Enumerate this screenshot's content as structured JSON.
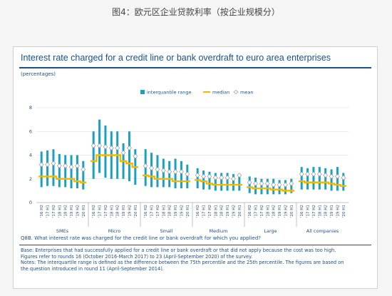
{
  "page_caption": "图4：欧元区企业贷款利率（按企业规模分）",
  "figure": {
    "title": "Interest rate charged for a credit line or bank overdraft to euro area enterprises",
    "units": "(percentages)",
    "question": "Q8B. What interest rate was charged for the credit line or bank overdraft for which you applied?",
    "notes": [
      "Base: Enterprises that had successfully applied for a credit line or bank overdraft or that did not apply because the cost was too high.",
      "Figures refer to rounds 16 (October 2016-March 2017) to 23 (April-September 2020) of the survey.",
      "Notes: The interquartile range is defined as the difference between the 75th percentile and the 25th percentile. The figures are based on",
      "the question introduced in round 11 (April-September 2014)."
    ]
  },
  "colors": {
    "iqr": "#1aa0c2",
    "median": "#f5b800",
    "mean_fill": "#ffffff",
    "mean_stroke": "#9a9a9a",
    "text": "#1a4f8a",
    "grid": "#d9d9d9"
  },
  "chart_data": {
    "type": "bar",
    "legend": {
      "placement": "top-center",
      "entries": [
        "interquantile range",
        "median",
        "mean"
      ]
    },
    "y_ticks": [
      "0",
      "2",
      "4",
      "6",
      "8"
    ],
    "ylim": [
      0,
      8
    ],
    "grid": true,
    "period_labels": [
      "'16 H2",
      "'17 H1",
      "'17 H2",
      "'18 H1",
      "'18 H2",
      "'19 H1",
      "'19 H2",
      "'20 H1"
    ],
    "groups": [
      {
        "name": "SMEs",
        "iqr_low": [
          1.3,
          1.4,
          1.4,
          1.3,
          1.3,
          1.2,
          1.2,
          1.1
        ],
        "iqr_high": [
          4.3,
          4.4,
          4.5,
          4.1,
          4.0,
          4.0,
          4.0,
          3.5
        ],
        "median": [
          2.2,
          2.2,
          2.2,
          2.0,
          2.0,
          2.0,
          1.8,
          1.7
        ],
        "mean": [
          3.2,
          3.2,
          3.3,
          3.1,
          3.1,
          3.0,
          3.1,
          2.8
        ]
      },
      {
        "name": "Micro",
        "iqr_low": [
          2.0,
          2.5,
          2.1,
          2.0,
          2.0,
          2.0,
          1.8,
          1.5
        ],
        "iqr_high": [
          6.0,
          7.0,
          6.5,
          6.0,
          6.0,
          5.0,
          6.0,
          4.5
        ],
        "median": [
          3.5,
          4.0,
          4.0,
          4.0,
          4.0,
          3.5,
          3.3,
          3.0
        ],
        "mean": [
          4.8,
          4.8,
          4.7,
          4.6,
          4.6,
          4.2,
          4.6,
          3.9
        ]
      },
      {
        "name": "Small",
        "iqr_low": [
          1.4,
          1.3,
          1.3,
          1.3,
          1.3,
          1.2,
          1.2,
          1.2
        ],
        "iqr_high": [
          4.5,
          4.2,
          4.0,
          3.7,
          3.5,
          3.7,
          3.5,
          3.2
        ],
        "median": [
          2.3,
          2.2,
          2.0,
          2.0,
          2.0,
          1.8,
          1.8,
          1.8
        ],
        "mean": [
          3.1,
          2.9,
          2.8,
          2.7,
          2.6,
          2.6,
          2.6,
          2.4
        ]
      },
      {
        "name": "Medium",
        "iqr_low": [
          1.2,
          1.1,
          1.1,
          1.0,
          1.0,
          1.0,
          1.0,
          1.0
        ],
        "iqr_high": [
          2.9,
          2.7,
          2.6,
          2.5,
          2.5,
          2.5,
          2.4,
          2.4
        ],
        "median": [
          1.9,
          1.8,
          1.6,
          1.5,
          1.5,
          1.5,
          1.5,
          1.5
        ],
        "mean": [
          2.3,
          2.2,
          2.2,
          2.1,
          2.1,
          2.1,
          2.0,
          2.3
        ]
      },
      {
        "name": "Large",
        "iqr_low": [
          0.8,
          0.7,
          0.7,
          0.7,
          0.7,
          0.7,
          0.7,
          0.8
        ],
        "iqr_high": [
          2.2,
          2.1,
          2.0,
          2.0,
          2.0,
          1.9,
          1.9,
          2.0
        ],
        "median": [
          1.3,
          1.2,
          1.2,
          1.2,
          1.1,
          1.1,
          1.0,
          1.0
        ],
        "mean": [
          1.7,
          1.6,
          1.6,
          1.6,
          1.5,
          1.5,
          1.5,
          1.6
        ]
      },
      {
        "name": "All companies",
        "iqr_low": [
          1.1,
          1.1,
          1.1,
          1.1,
          1.1,
          1.0,
          1.0,
          1.0
        ],
        "iqr_high": [
          3.0,
          2.9,
          3.0,
          3.0,
          2.9,
          2.8,
          3.0,
          2.5
        ],
        "median": [
          1.8,
          1.7,
          1.7,
          1.7,
          1.7,
          1.6,
          1.5,
          1.4
        ],
        "mean": [
          2.4,
          2.4,
          2.4,
          2.4,
          2.3,
          2.2,
          2.2,
          2.1
        ]
      }
    ]
  }
}
